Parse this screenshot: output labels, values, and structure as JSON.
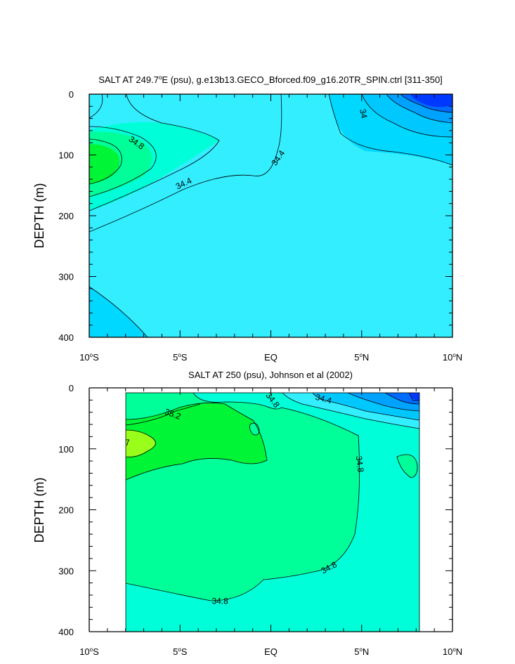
{
  "chart_data": [
    {
      "type": "contour",
      "title": "SALT AT 249.7°E (psu), g.e13b13.GECO_Bforced.f09_g16.20TR_SPIN.ctrl [311-350]",
      "title_prefix": "SALT AT 249.7",
      "title_sup": "o",
      "title_suffix": "E (psu), g.e13b13.GECO_Bforced.f09_g16.20TR_SPIN.ctrl [311-350]",
      "xlabel": "",
      "ylabel": "DEPTH (m)",
      "xlim": [
        -10,
        10
      ],
      "ylim": [
        0,
        400
      ],
      "y_ticks": [
        0,
        100,
        200,
        300,
        400
      ],
      "x_ticks": [
        {
          "value": -10,
          "num": "10",
          "sup": "o",
          "suffix": "S"
        },
        {
          "value": -5,
          "num": "5",
          "sup": "o",
          "suffix": "S"
        },
        {
          "value": 0,
          "num": "EQ",
          "sup": "",
          "suffix": ""
        },
        {
          "value": 5,
          "num": "5",
          "sup": "o",
          "suffix": "N"
        },
        {
          "value": 10,
          "num": "10",
          "sup": "o",
          "suffix": "N"
        }
      ],
      "contour_labels": [
        {
          "text": "34.8",
          "lat": -7.4,
          "depth": 80,
          "rot": 35
        },
        {
          "text": "34.4",
          "lat": -4.8,
          "depth": 147,
          "rot": -25
        },
        {
          "text": "34.4",
          "lat": 0.4,
          "depth": 105,
          "rot": -55
        },
        {
          "text": "34",
          "lat": 5.1,
          "depth": 32,
          "rot": 78
        }
      ],
      "levels": [
        {
          "salinity": 34.0,
          "color": "#00D8FF"
        },
        {
          "salinity": 34.4,
          "color": "#33EEFF"
        },
        {
          "salinity": 34.6,
          "color": "#00FFD8"
        },
        {
          "salinity": 34.8,
          "color": "#00FF99"
        },
        {
          "salinity": 35.0,
          "color": "#00F536"
        },
        {
          "salinity": 33.2,
          "color": "#0038FF"
        }
      ]
    },
    {
      "type": "contour",
      "title": "SALT AT 250 (psu), Johnson et al (2002)",
      "xlabel": "",
      "ylabel": "DEPTH (m)",
      "xlim": [
        -10,
        10
      ],
      "ylim": [
        0,
        400
      ],
      "data_lat_range": [
        -8,
        8.2
      ],
      "y_ticks": [
        0,
        100,
        200,
        300,
        400
      ],
      "x_ticks": [
        {
          "value": -10,
          "num": "10",
          "sup": "o",
          "suffix": "S"
        },
        {
          "value": -5,
          "num": "5",
          "sup": "o",
          "suffix": "S"
        },
        {
          "value": 0,
          "num": "EQ",
          "sup": "",
          "suffix": ""
        },
        {
          "value": 5,
          "num": "5",
          "sup": "o",
          "suffix": "N"
        },
        {
          "value": 10,
          "num": "10",
          "sup": "o",
          "suffix": "N"
        }
      ],
      "contour_labels": [
        {
          "text": "35.2",
          "lat": -5.4,
          "depth": 43,
          "rot": 20
        },
        {
          "text": "34.8",
          "lat": 0.1,
          "depth": 20,
          "rot": 52
        },
        {
          "text": "34.4",
          "lat": 2.9,
          "depth": 18,
          "rot": 15
        },
        {
          "text": "34.8",
          "lat": 4.9,
          "depth": 125,
          "rot": 82
        },
        {
          "text": "34.8",
          "lat": 3.2,
          "depth": 295,
          "rot": -28
        },
        {
          "text": "34.8",
          "lat": -2.8,
          "depth": 350,
          "rot": 0
        },
        {
          "text": "7",
          "lat": -7.9,
          "depth": 90,
          "rot": 0
        }
      ],
      "levels": [
        {
          "salinity": 34.8,
          "color": "#00FFD8"
        },
        {
          "salinity": 35.0,
          "color": "#00FF99"
        },
        {
          "salinity": 35.2,
          "color": "#00F536"
        },
        {
          "salinity": 35.6,
          "color": "#99FF1A"
        },
        {
          "salinity": 34.4,
          "color": "#33EEFF"
        },
        {
          "salinity": 34.0,
          "color": "#00C8FF"
        },
        {
          "salinity": 33.6,
          "color": "#00A2FF"
        },
        {
          "salinity": 33.2,
          "color": "#0038FF"
        }
      ]
    }
  ]
}
